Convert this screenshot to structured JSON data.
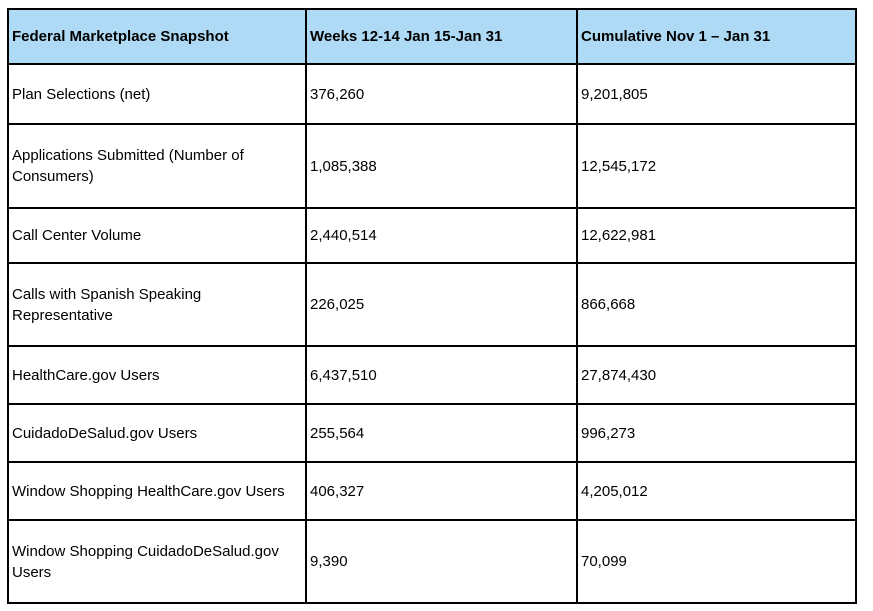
{
  "theme": {
    "header_bg": "#AEDAF5",
    "border_color": "#000000",
    "text_color": "#000000",
    "body_bg": "#FFFFFF"
  },
  "table": {
    "title": "Federal Marketplace Snapshot",
    "headers": {
      "metric": "Federal Marketplace Snapshot",
      "weekly": "Weeks 12-14 Jan 15-Jan 31",
      "cumulative": "Cumulative Nov 1 – Jan 31"
    },
    "rows": [
      {
        "label": "Plan Selections (net)",
        "weekly": "376,260",
        "cumulative": "9,201,805"
      },
      {
        "label": "Applications Submitted (Number of Consumers)",
        "weekly": "1,085,388",
        "cumulative": "12,545,172"
      },
      {
        "label": "Call Center Volume",
        "weekly": "2,440,514",
        "cumulative": "12,622,981"
      },
      {
        "label": "Calls with Spanish Speaking Representative",
        "weekly": "226,025",
        "cumulative": "866,668"
      },
      {
        "label": "HealthCare.gov Users",
        "weekly": "6,437,510",
        "cumulative": "27,874,430"
      },
      {
        "label": "CuidadoDeSalud.gov Users",
        "weekly": "255,564",
        "cumulative": "996,273"
      },
      {
        "label": "Window Shopping HealthCare.gov Users",
        "weekly": "406,327",
        "cumulative": "4,205,012"
      },
      {
        "label": "Window Shopping CuidadoDeSalud.gov Users",
        "weekly": "9,390",
        "cumulative": "70,099"
      }
    ]
  },
  "chart_data": {
    "type": "table",
    "title": "Federal Marketplace Snapshot",
    "columns": [
      "Federal Marketplace Snapshot",
      "Weeks 12-14 Jan 15-Jan 31",
      "Cumulative Nov 1 – Jan 31"
    ],
    "rows": [
      [
        "Plan Selections (net)",
        376260,
        9201805
      ],
      [
        "Applications Submitted (Number of Consumers)",
        1085388,
        12545172
      ],
      [
        "Call Center Volume",
        2440514,
        12622981
      ],
      [
        "Calls with Spanish Speaking Representative",
        226025,
        866668
      ],
      [
        "HealthCare.gov Users",
        6437510,
        27874430
      ],
      [
        "CuidadoDeSalud.gov Users",
        255564,
        996273
      ],
      [
        "Window Shopping HealthCare.gov Users",
        406327,
        4205012
      ],
      [
        "Window Shopping CuidadoDeSalud.gov Users",
        9390,
        70099
      ]
    ]
  }
}
